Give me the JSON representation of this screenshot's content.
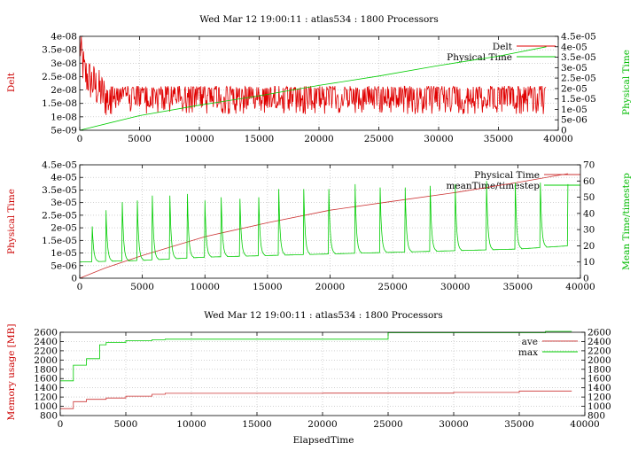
{
  "chart_data": [
    {
      "type": "line",
      "title": "Wed Mar 12 19:00:11 : atlas534 : 1800 Processors",
      "xlabel": "",
      "ylabel_left": "Delt",
      "ylabel_right": "Physical Time",
      "xlim": [
        0,
        40000
      ],
      "ylim_left": [
        5e-09,
        4e-08
      ],
      "ylim_right": [
        0,
        4.5e-05
      ],
      "x_ticks": [
        "0",
        "5000",
        "10000",
        "15000",
        "20000",
        "25000",
        "30000",
        "35000",
        "40000"
      ],
      "y_ticks_left": [
        "5e-09",
        "1e-08",
        "1.5e-08",
        "2e-08",
        "2.5e-08",
        "3e-08",
        "3.5e-08",
        "4e-08"
      ],
      "y_ticks_right": [
        "0",
        "5e-06",
        "1e-05",
        "1.5e-05",
        "2e-05",
        "2.5e-05",
        "3e-05",
        "3.5e-05",
        "4e-05",
        "4.5e-05"
      ],
      "grid": true,
      "legend": "top-right",
      "series": [
        {
          "name": "Delt",
          "axis": "left",
          "color": "#e00000",
          "style": "noisy",
          "x": [
            0,
            400,
            800,
            1200,
            2000,
            2500,
            39000
          ],
          "y": [
            3.7e-08,
            2.6e-08,
            2.4e-08,
            2.2e-08,
            1.8e-08,
            1.6e-08,
            1.6e-08
          ],
          "band": [
            1.1e-08,
            2.2e-08
          ]
        },
        {
          "name": "Physical Time",
          "axis": "right",
          "color": "#00cc00",
          "x": [
            0,
            5000,
            10000,
            15000,
            20000,
            25000,
            30000,
            35000,
            39000
          ],
          "y": [
            0,
            7e-06,
            1.2e-05,
            1.65e-05,
            2.15e-05,
            2.6e-05,
            3.1e-05,
            3.55e-05,
            4e-05
          ]
        }
      ]
    },
    {
      "type": "line",
      "title": "",
      "xlabel": "",
      "ylabel_left": "Physical Time",
      "ylabel_right": "Mean Time/timestep",
      "xlim": [
        0,
        40000
      ],
      "ylim_left": [
        0,
        4.5e-05
      ],
      "ylim_right": [
        0,
        70
      ],
      "x_ticks": [
        "0",
        "5000",
        "10000",
        "15000",
        "20000",
        "25000",
        "30000",
        "35000",
        "40000"
      ],
      "y_ticks_left": [
        "0",
        "5e-06",
        "1e-05",
        "1.5e-05",
        "2e-05",
        "2.5e-05",
        "3e-05",
        "3.5e-05",
        "4e-05",
        "4.5e-05"
      ],
      "y_ticks_right": [
        "0",
        "10",
        "20",
        "30",
        "40",
        "50",
        "60",
        "70"
      ],
      "grid": true,
      "legend": "top-right",
      "series": [
        {
          "name": "Physical Time",
          "axis": "left",
          "color": "#cc3333",
          "x": [
            0,
            2000,
            5000,
            10000,
            15000,
            20000,
            25000,
            30000,
            35000,
            39000
          ],
          "y": [
            0,
            4e-06,
            9e-06,
            1.65e-05,
            2.2e-05,
            2.7e-05,
            3.05e-05,
            3.4e-05,
            3.8e-05,
            4.15e-05
          ]
        },
        {
          "name": "meanTime/timestep",
          "axis": "right",
          "color": "#00cc00",
          "style": "spikes",
          "baseline_x": [
            0,
            5000,
            10000,
            15000,
            20000,
            25000,
            30000,
            35000,
            39000
          ],
          "baseline_y": [
            10,
            11,
            13,
            14,
            15,
            16,
            17,
            18,
            20
          ],
          "peaks_x": [
            1000,
            2100,
            3400,
            4600,
            5800,
            7200,
            8600,
            10000,
            11300,
            12800,
            14300,
            15900,
            17900,
            19900,
            22000,
            24000,
            26000,
            28000,
            30000,
            32500,
            34800,
            36800,
            39000
          ],
          "peaks_y": [
            32,
            42,
            47,
            48,
            51,
            51,
            52,
            48,
            50,
            49,
            50,
            55,
            55,
            55,
            58,
            56,
            56,
            57,
            58,
            60,
            59,
            59,
            58
          ]
        }
      ]
    },
    {
      "type": "line",
      "title": "Wed Mar 12 19:00:11 : atlas534 : 1800 Processors",
      "xlabel": "ElapsedTime",
      "ylabel_left": "Memory usage [MB]",
      "ylabel_right": "",
      "xlim": [
        0,
        40000
      ],
      "ylim_left": [
        800,
        2600
      ],
      "ylim_right": [
        800,
        2600
      ],
      "x_ticks": [
        "0",
        "5000",
        "10000",
        "15000",
        "20000",
        "25000",
        "30000",
        "35000",
        "40000"
      ],
      "y_ticks_left": [
        "800",
        "1000",
        "1200",
        "1400",
        "1600",
        "1800",
        "2000",
        "2200",
        "2400",
        "2600"
      ],
      "y_ticks_right": [
        "800",
        "1000",
        "1200",
        "1400",
        "1600",
        "1800",
        "2000",
        "2200",
        "2400",
        "2600"
      ],
      "grid": true,
      "legend": "top-right",
      "series": [
        {
          "name": "ave",
          "color": "#cc3333",
          "step": true,
          "x": [
            0,
            1000,
            2000,
            3500,
            5000,
            7000,
            8000,
            20000,
            30000,
            35000,
            39000
          ],
          "y": [
            950,
            1100,
            1150,
            1180,
            1220,
            1260,
            1280,
            1285,
            1300,
            1330,
            1330
          ]
        },
        {
          "name": "max",
          "color": "#00cc00",
          "step": true,
          "x": [
            0,
            1000,
            2000,
            3000,
            3500,
            5000,
            7000,
            8000,
            25000,
            37000,
            39000
          ],
          "y": [
            1550,
            1890,
            2030,
            2330,
            2380,
            2420,
            2440,
            2450,
            2590,
            2620,
            2620
          ]
        }
      ]
    }
  ]
}
